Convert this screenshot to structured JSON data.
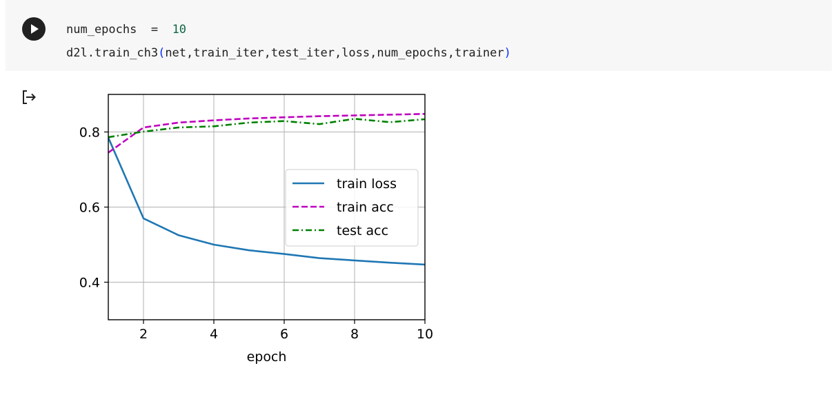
{
  "cell": {
    "run_icon": "play-icon",
    "code_lines": [
      [
        {
          "t": "num_epochs  ",
          "c": "plain"
        },
        {
          "t": "=",
          "c": "op"
        },
        {
          "t": "  ",
          "c": "plain"
        },
        {
          "t": "10",
          "c": "num"
        }
      ],
      [
        {
          "t": "d2l.train_ch3",
          "c": "plain"
        },
        {
          "t": "(",
          "c": "paren"
        },
        {
          "t": "net,train_iter,test_iter,loss,num_epochs,trainer",
          "c": "plain"
        },
        {
          "t": ")",
          "c": "paren"
        }
      ]
    ]
  },
  "output": {
    "icon": "output-redirect-icon"
  },
  "chart_data": {
    "type": "line",
    "title": "",
    "xlabel": "epoch",
    "ylabel": "",
    "xlim": [
      1,
      10
    ],
    "ylim": [
      0.3,
      0.9
    ],
    "xticks": [
      2,
      4,
      6,
      8,
      10
    ],
    "yticks": [
      0.4,
      0.6,
      0.8
    ],
    "grid": true,
    "legend_position": "center-right",
    "series": [
      {
        "name": "train loss",
        "style": "solid",
        "color": "#1f77b4",
        "x": [
          1,
          2,
          3,
          4,
          5,
          6,
          7,
          8,
          9,
          10
        ],
        "values": [
          0.785,
          0.57,
          0.525,
          0.5,
          0.485,
          0.475,
          0.464,
          0.458,
          0.452,
          0.447
        ]
      },
      {
        "name": "train acc",
        "style": "dashed",
        "color": "#bf00bf",
        "x": [
          1,
          2,
          3,
          4,
          5,
          6,
          7,
          8,
          9,
          10
        ],
        "values": [
          0.745,
          0.812,
          0.825,
          0.831,
          0.836,
          0.839,
          0.842,
          0.844,
          0.846,
          0.848
        ]
      },
      {
        "name": "test acc",
        "style": "dashdot",
        "color": "#008000",
        "x": [
          1,
          2,
          3,
          4,
          5,
          6,
          7,
          8,
          9,
          10
        ],
        "values": [
          0.786,
          0.801,
          0.812,
          0.815,
          0.825,
          0.829,
          0.821,
          0.835,
          0.826,
          0.834
        ]
      }
    ]
  }
}
